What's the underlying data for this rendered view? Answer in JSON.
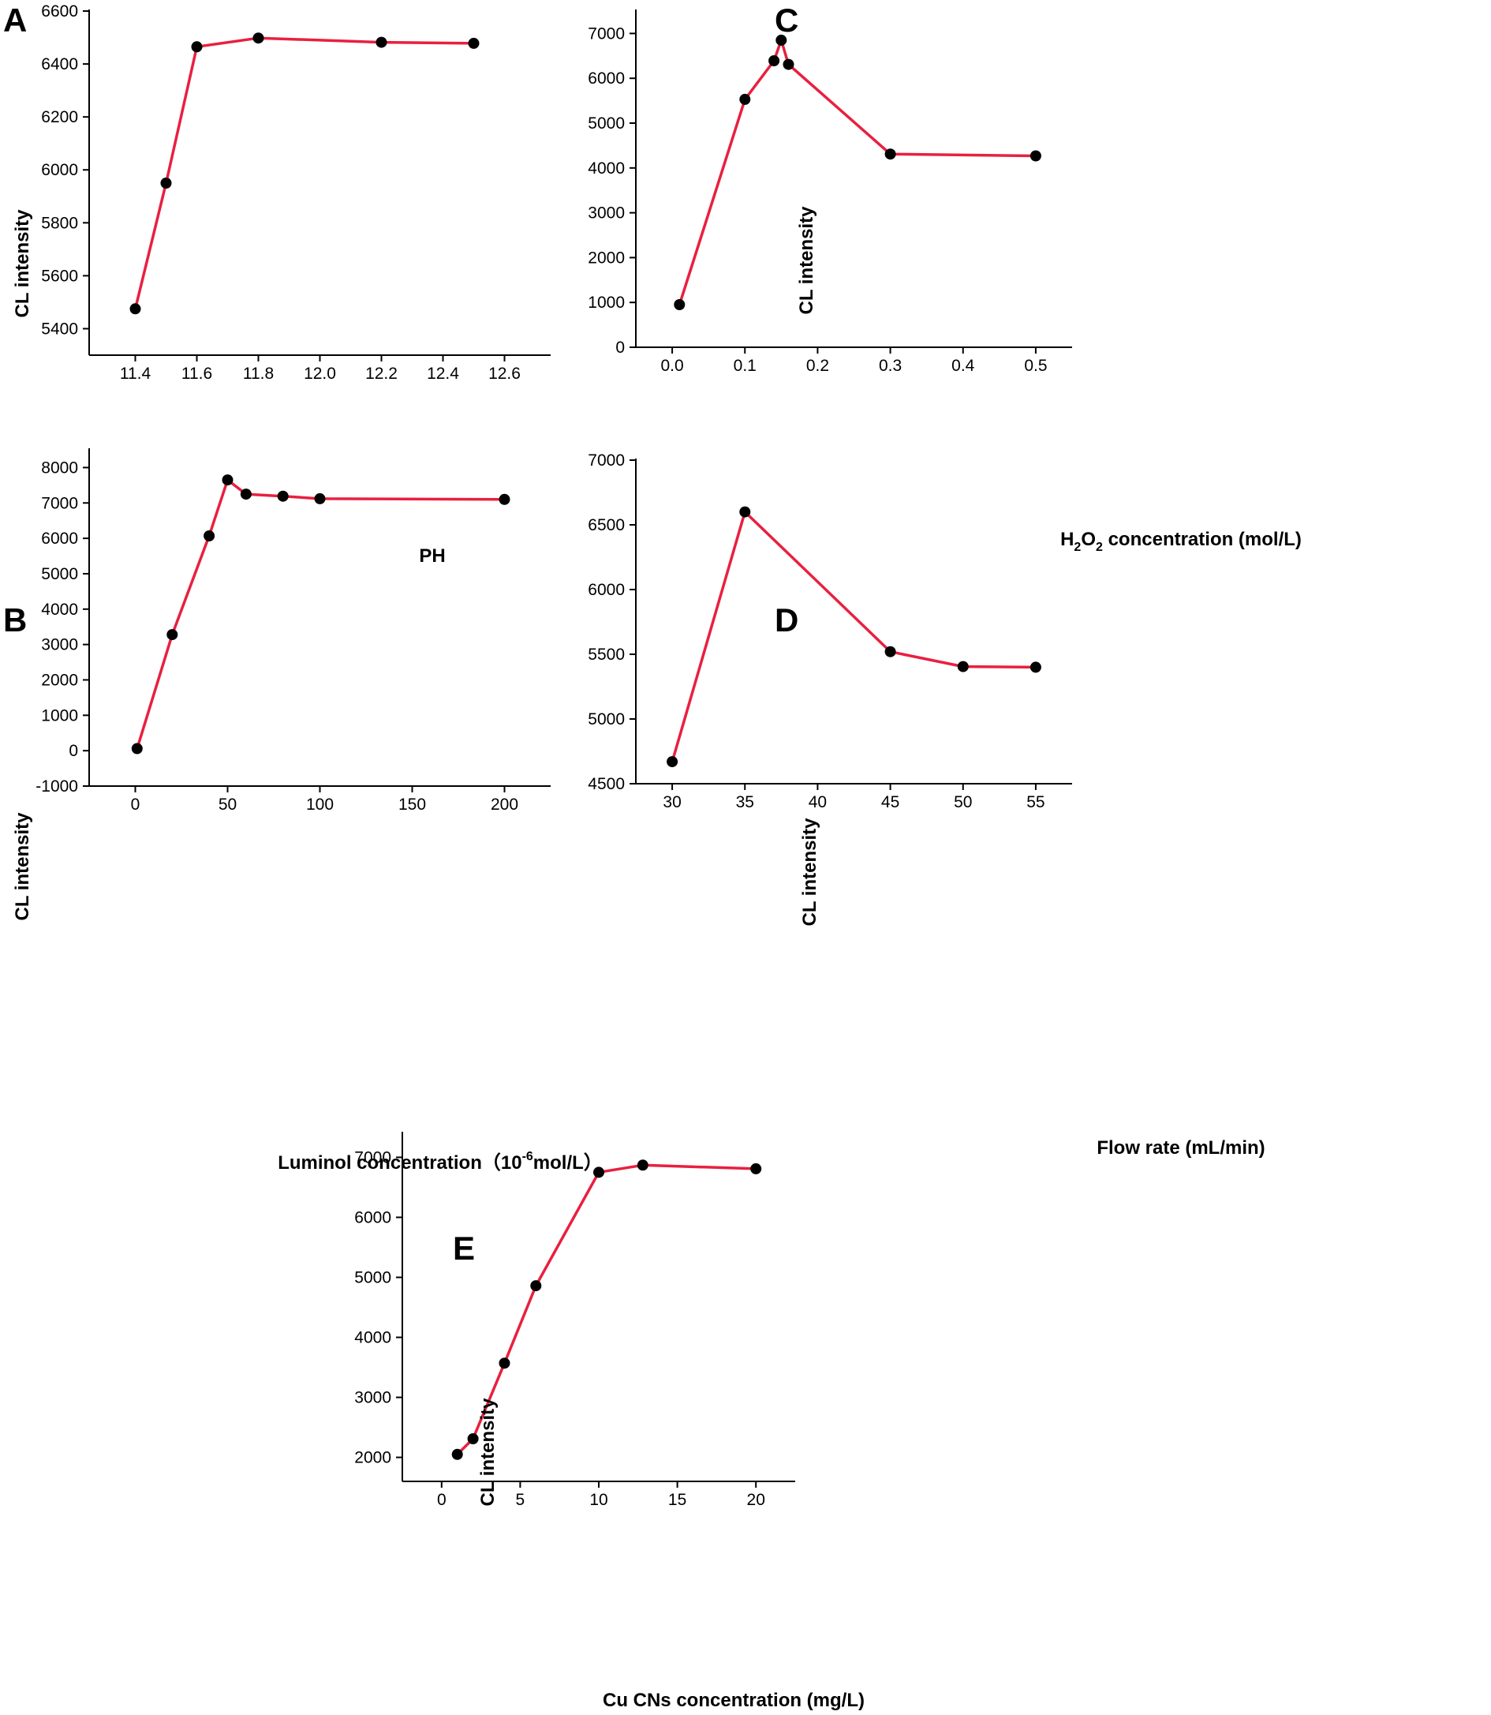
{
  "colors": {
    "line": "#e8203f",
    "marker": "#000000"
  },
  "chart_data": [
    {
      "id": "A",
      "type": "line",
      "panel_label": "A",
      "x": [
        11.4,
        11.5,
        11.6,
        11.8,
        12.2,
        12.5
      ],
      "series": [
        {
          "name": "CL intensity",
          "values": [
            5475,
            5950,
            6465,
            6498,
            6482,
            6478
          ]
        }
      ],
      "xlabel": "PH",
      "ylabel": "CL intensity",
      "xlim": [
        11.25,
        12.75
      ],
      "ylim": [
        5300,
        6600
      ],
      "xticks": [
        11.4,
        11.6,
        11.8,
        12.0,
        12.2,
        12.4,
        12.6
      ],
      "xtick_labels": [
        "11.4",
        "11.6",
        "11.8",
        "12.0",
        "12.2",
        "12.4",
        "12.6"
      ],
      "yticks": [
        5400,
        5600,
        5800,
        6000,
        6200,
        6400,
        6600
      ],
      "ytick_labels": [
        "5400",
        "5600",
        "5800",
        "6000",
        "6200",
        "6400",
        "6600"
      ],
      "grid": false
    },
    {
      "id": "B",
      "type": "line",
      "panel_label": "B",
      "x": [
        1,
        20,
        40,
        50,
        60,
        80,
        100,
        200
      ],
      "series": [
        {
          "name": "CL intensity",
          "values": [
            60,
            3280,
            6070,
            7650,
            7250,
            7190,
            7120,
            7100
          ]
        }
      ],
      "xlabel_main": "Luminol concentration（10",
      "xlabel_sup": "-6",
      "xlabel_tail": "mol/L）",
      "ylabel": "CL intensity",
      "xlim": [
        -25,
        225
      ],
      "ylim": [
        -1000,
        8500
      ],
      "xticks": [
        0,
        50,
        100,
        150,
        200
      ],
      "xtick_labels": [
        "0",
        "50",
        "100",
        "150",
        "200"
      ],
      "yticks": [
        -1000,
        0,
        1000,
        2000,
        3000,
        4000,
        5000,
        6000,
        7000,
        8000
      ],
      "ytick_labels": [
        "-1000",
        "0",
        "1000",
        "2000",
        "3000",
        "4000",
        "5000",
        "6000",
        "7000",
        "8000"
      ],
      "grid": false
    },
    {
      "id": "C",
      "type": "line",
      "panel_label": "C",
      "x": [
        0.01,
        0.1,
        0.14,
        0.15,
        0.16,
        0.3,
        0.5
      ],
      "series": [
        {
          "name": "CL intensity",
          "values": [
            950,
            5530,
            6390,
            6850,
            6310,
            4310,
            4270
          ]
        }
      ],
      "xlabel_pre": "H",
      "xlabel_sub1": "2",
      "xlabel_mid": "O",
      "xlabel_sub2": "2",
      "xlabel_post": " concentration (mol/L)",
      "ylabel": "CL intensity",
      "xlim": [
        -0.05,
        0.55
      ],
      "ylim": [
        0,
        7500
      ],
      "xticks": [
        0.0,
        0.1,
        0.2,
        0.3,
        0.4,
        0.5
      ],
      "xtick_labels": [
        "0.0",
        "0.1",
        "0.2",
        "0.3",
        "0.4",
        "0.5"
      ],
      "yticks": [
        0,
        1000,
        2000,
        3000,
        4000,
        5000,
        6000,
        7000
      ],
      "ytick_labels": [
        "0",
        "1000",
        "2000",
        "3000",
        "4000",
        "5000",
        "6000",
        "7000"
      ],
      "grid": false
    },
    {
      "id": "D",
      "type": "line",
      "panel_label": "D",
      "x": [
        30,
        35,
        45,
        50,
        55
      ],
      "series": [
        {
          "name": "CL intensity",
          "values": [
            4670,
            6600,
            5520,
            5405,
            5400
          ]
        }
      ],
      "xlabel": "Flow rate (mL/min)",
      "ylabel": "CL intensity",
      "xlim": [
        27.5,
        57.5
      ],
      "ylim": [
        4500,
        7000
      ],
      "xticks": [
        30,
        35,
        40,
        45,
        50,
        55
      ],
      "xtick_labels": [
        "30",
        "35",
        "40",
        "45",
        "50",
        "55"
      ],
      "yticks": [
        4500,
        5000,
        5500,
        6000,
        6500,
        7000
      ],
      "ytick_labels": [
        "4500",
        "5000",
        "5500",
        "6000",
        "6500",
        "7000"
      ],
      "grid": false
    },
    {
      "id": "E",
      "type": "line",
      "panel_label": "E",
      "x": [
        1,
        2,
        4,
        6,
        10,
        12.8,
        20
      ],
      "series": [
        {
          "name": "CL intensity",
          "values": [
            2050,
            2310,
            3570,
            4860,
            6750,
            6870,
            6810
          ]
        }
      ],
      "xlabel": "Cu CNs concentration (mg/L)",
      "ylabel": "CL intensity",
      "xlim": [
        -2.5,
        22.5
      ],
      "ylim": [
        1600,
        7400
      ],
      "xticks": [
        0,
        5,
        10,
        15,
        20
      ],
      "xtick_labels": [
        "0",
        "5",
        "10",
        "15",
        "20"
      ],
      "yticks": [
        2000,
        3000,
        4000,
        5000,
        6000,
        7000
      ],
      "ytick_labels": [
        "2000",
        "3000",
        "4000",
        "5000",
        "6000",
        "7000"
      ],
      "grid": false
    }
  ]
}
